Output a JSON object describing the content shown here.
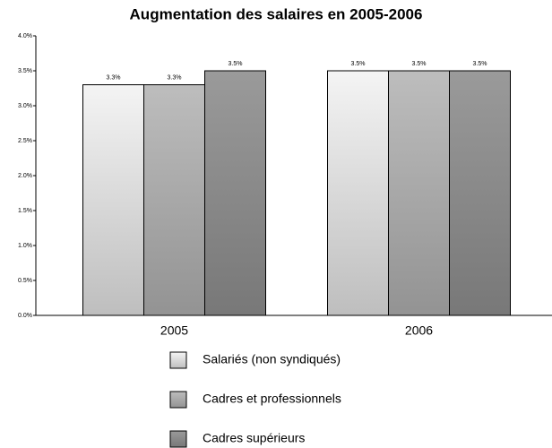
{
  "chart_data": {
    "type": "bar",
    "title": "Augmentation des salaires en 2005-2006",
    "categories": [
      "2005",
      "2006"
    ],
    "series": [
      {
        "name": "Salariés (non syndiqués)",
        "color": "#f4f4f4",
        "values": [
          3.3,
          3.5
        ],
        "value_labels": [
          "3.3%",
          "3.5%"
        ]
      },
      {
        "name": "Cadres et professionnels",
        "color": "#bdbdbd",
        "values": [
          3.3,
          3.5
        ],
        "value_labels": [
          "3.3%",
          "3.5%"
        ]
      },
      {
        "name": "Cadres supérieurs",
        "color": "#9a9a9a",
        "values": [
          3.5,
          3.5
        ],
        "value_labels": [
          "3.5%",
          "3.5%"
        ]
      }
    ],
    "ylim": [
      0,
      4
    ],
    "yticks": [
      {
        "value": 0,
        "label": "0.0%"
      },
      {
        "value": 0.5,
        "label": "0.5%"
      },
      {
        "value": 1,
        "label": "1.0%"
      },
      {
        "value": 1.5,
        "label": "1.5%"
      },
      {
        "value": 2,
        "label": "2.0%"
      },
      {
        "value": 2.5,
        "label": "2.5%"
      },
      {
        "value": 3,
        "label": "3.0%"
      },
      {
        "value": 3.5,
        "label": "3.5%"
      },
      {
        "value": 4,
        "label": "4.0%"
      }
    ],
    "legend": "bottom"
  }
}
